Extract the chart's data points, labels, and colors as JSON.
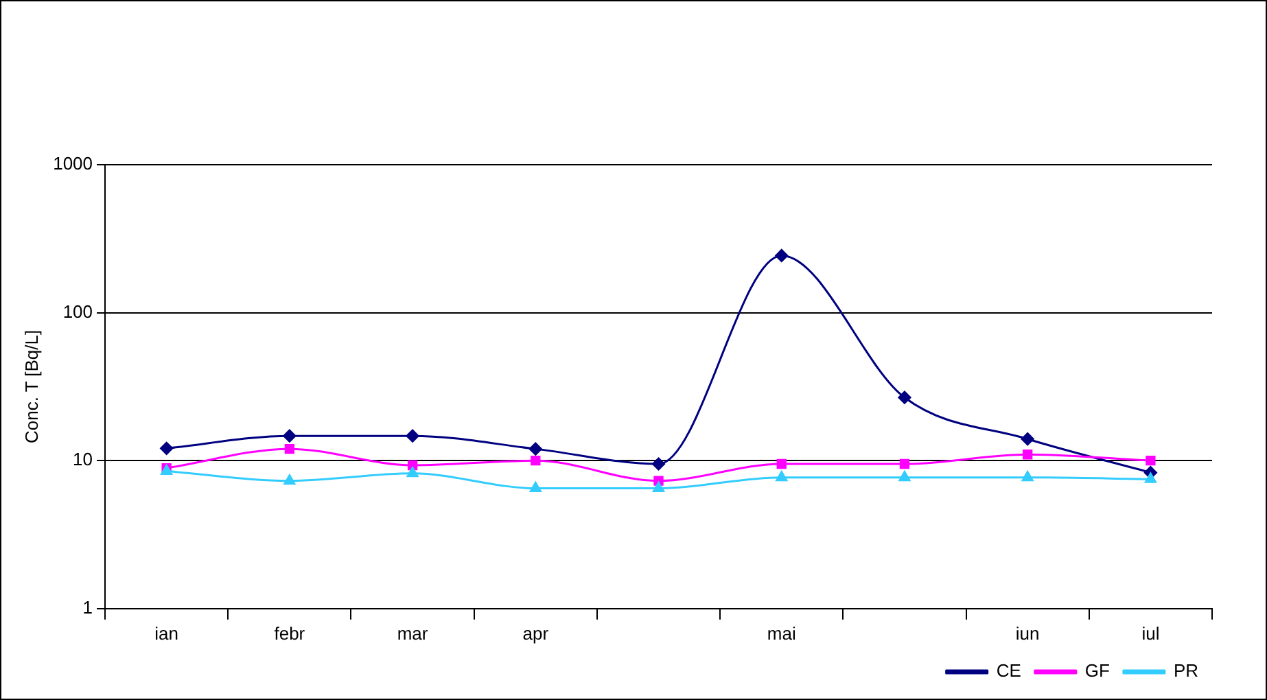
{
  "chart_data": {
    "type": "line",
    "ylabel": "Conc. T [Bq/L]",
    "categories": [
      "ian",
      "febr",
      "mar",
      "apr",
      null,
      "mai",
      null,
      "iun",
      "iul"
    ],
    "series": [
      {
        "name": "CE",
        "color": "#000080",
        "marker": "diamond",
        "values": [
          12.1,
          14.7,
          14.7,
          12,
          9.5,
          243,
          26.7,
          14,
          8.3
        ]
      },
      {
        "name": "GF",
        "color": "#ff00ff",
        "marker": "square",
        "values": [
          8.9,
          12,
          9.3,
          10,
          7.3,
          9.5,
          9.5,
          11,
          10
        ]
      },
      {
        "name": "PR",
        "color": "#33ccff",
        "marker": "triangle",
        "values": [
          8.5,
          7.3,
          8.2,
          6.5,
          6.5,
          7.7,
          7.7,
          7.7,
          7.5
        ]
      }
    ],
    "log": "y",
    "ylim": [
      1,
      1000
    ],
    "yticks": [
      1,
      10,
      100,
      1000
    ],
    "grid": "y",
    "legend": "bottom right"
  }
}
